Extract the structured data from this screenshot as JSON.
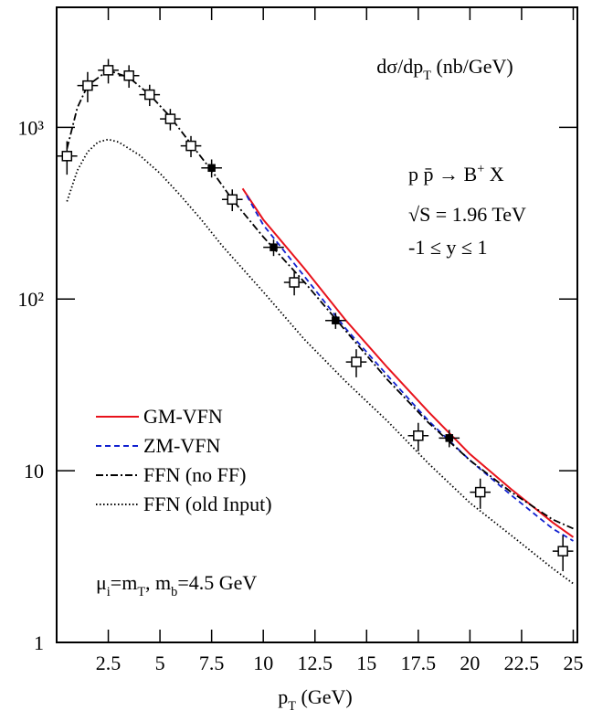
{
  "chart_data": {
    "type": "line",
    "title": [
      "dσ/dp",
      {
        "sub": "T"
      },
      " (nb/GeV)"
    ],
    "xlabel": [
      "p",
      {
        "sub": "T"
      },
      " (GeV)"
    ],
    "annotations": [
      [
        "p p̄ → B",
        {
          "sup": "+"
        },
        " X"
      ],
      [
        "√S = 1.96 TeV"
      ],
      [
        "-1 ≤  y ≤ 1"
      ],
      [
        "μ",
        {
          "sub": "i"
        },
        "=m",
        {
          "sub": "T"
        },
        ", m",
        {
          "sub": "b"
        },
        "=4.5 GeV"
      ]
    ],
    "xlim": [
      0,
      25.2
    ],
    "xticks": [
      2.5,
      5,
      7.5,
      10,
      12.5,
      15,
      17.5,
      20,
      22.5,
      25
    ],
    "ylim": [
      1,
      5000
    ],
    "log_y": true,
    "yticks": [
      1,
      10,
      {
        "value": 100,
        "label": "10²"
      },
      {
        "value": 1000,
        "label": "10³"
      }
    ],
    "legend": "lower left",
    "series": [
      {
        "name": "GM-VFN",
        "color": "#e8121b",
        "dash": "solid",
        "x": [
          9,
          10,
          12,
          14,
          16,
          18,
          20,
          22,
          24,
          25
        ],
        "values": [
          440,
          290,
          150,
          75,
          40,
          22,
          12.5,
          7.8,
          5,
          4.1
        ]
      },
      {
        "name": "ZM-VFN",
        "color": "#1020d0",
        "dash": "dashed",
        "x": [
          9.2,
          10,
          12,
          14,
          16,
          18,
          20,
          22,
          24,
          25
        ],
        "values": [
          400,
          270,
          135,
          67,
          36,
          19.5,
          11.5,
          7.2,
          4.6,
          3.9
        ]
      },
      {
        "name": "FFN (no FF)",
        "color": "#000000",
        "dash": "dashdot",
        "x": [
          0.5,
          1,
          1.5,
          2.5,
          3.5,
          4.5,
          5.5,
          6.5,
          7.5,
          8.5,
          10,
          12,
          14,
          16,
          18,
          20,
          22,
          24,
          25
        ],
        "values": [
          750,
          1300,
          1750,
          2150,
          1950,
          1550,
          1150,
          800,
          560,
          380,
          230,
          125,
          65,
          34,
          19,
          11.5,
          7.5,
          5.2,
          4.6
        ]
      },
      {
        "name": "FFN (old Input)",
        "color": "#000000",
        "dash": "dotted",
        "x": [
          0.5,
          1,
          1.5,
          2,
          2.5,
          3,
          4,
          5,
          6,
          7,
          8,
          10,
          12,
          14,
          16,
          18,
          20,
          22,
          24,
          25
        ],
        "values": [
          370,
          560,
          720,
          820,
          850,
          820,
          690,
          540,
          400,
          290,
          205,
          110,
          58,
          33,
          19.5,
          11,
          6.5,
          4.2,
          2.7,
          2.2
        ]
      }
    ],
    "points": {
      "color": "#000000",
      "x": [
        0.5,
        1.5,
        2.5,
        3.5,
        4.5,
        5.5,
        6.5,
        7.5,
        8.5,
        10.5,
        11.5,
        13.5,
        14.5,
        17.5,
        19,
        20.5,
        24.5
      ],
      "values": [
        680,
        1750,
        2150,
        2000,
        1550,
        1120,
        780,
        580,
        380,
        200,
        125,
        75,
        43,
        16,
        15.5,
        7.5,
        3.4
      ],
      "xerr": [
        0.5,
        0.5,
        0.5,
        0.5,
        0.5,
        0.5,
        0.5,
        0.5,
        0.5,
        0.5,
        0.5,
        0.5,
        0.5,
        0.5,
        0.5,
        0.5,
        0.5
      ],
      "yerr": [
        150,
        350,
        350,
        300,
        220,
        160,
        110,
        70,
        55,
        22,
        20,
        8,
        8,
        3,
        1.8,
        1.5,
        0.8
      ],
      "filled": [
        false,
        false,
        false,
        false,
        false,
        false,
        false,
        true,
        false,
        true,
        false,
        true,
        false,
        false,
        true,
        false,
        false
      ]
    }
  }
}
